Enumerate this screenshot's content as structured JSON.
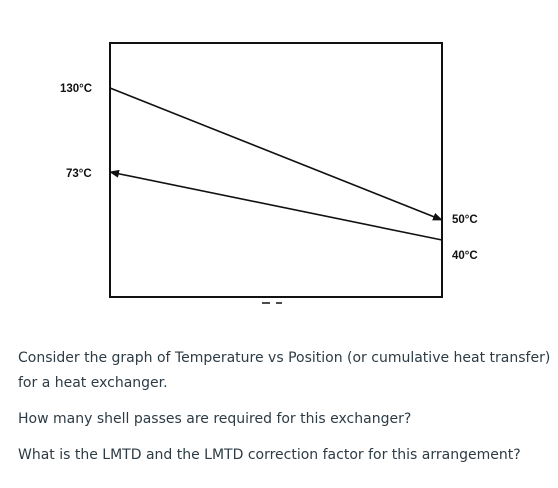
{
  "diagram": {
    "hot_inlet_label": "130°C",
    "cold_outlet_label": "73°C",
    "hot_outlet_label": "50°C",
    "cold_inlet_label": "40°C",
    "line_color": "#111111"
  },
  "question": {
    "paragraph_1": "Consider the graph of Temperature vs Position (or cumulative heat transfer) for a heat exchanger.",
    "paragraph_2": "How many shell passes are required for this exchanger?",
    "paragraph_3": "What is the LMTD and the LMTD correction factor for this arrangement?"
  }
}
